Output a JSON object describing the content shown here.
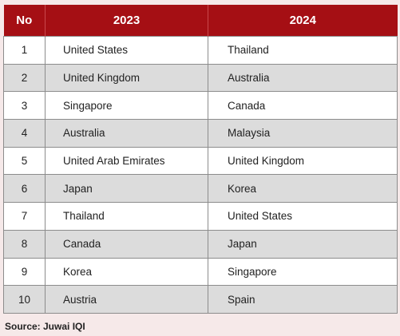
{
  "table": {
    "headers": [
      "No",
      "2023",
      "2024"
    ],
    "rows": [
      {
        "no": "1",
        "y2023": "United States",
        "y2024": "Thailand"
      },
      {
        "no": "2",
        "y2023": "United Kingdom",
        "y2024": "Australia"
      },
      {
        "no": "3",
        "y2023": "Singapore",
        "y2024": "Canada"
      },
      {
        "no": "4",
        "y2023": "Australia",
        "y2024": "Malaysia"
      },
      {
        "no": "5",
        "y2023": "United Arab Emirates",
        "y2024": "United Kingdom"
      },
      {
        "no": "6",
        "y2023": "Japan",
        "y2024": "Korea"
      },
      {
        "no": "7",
        "y2023": "Thailand",
        "y2024": "United States"
      },
      {
        "no": "8",
        "y2023": "Canada",
        "y2024": "Japan"
      },
      {
        "no": "9",
        "y2023": "Korea",
        "y2024": "Singapore"
      },
      {
        "no": "10",
        "y2023": "Austria",
        "y2024": "Spain"
      }
    ]
  },
  "source": "Source: Juwai IQI",
  "colors": {
    "header_bg": "#a50f14",
    "header_text": "#ffffff",
    "row_alt_bg": "#dcdcdc",
    "page_bg": "#f6e9e9"
  }
}
